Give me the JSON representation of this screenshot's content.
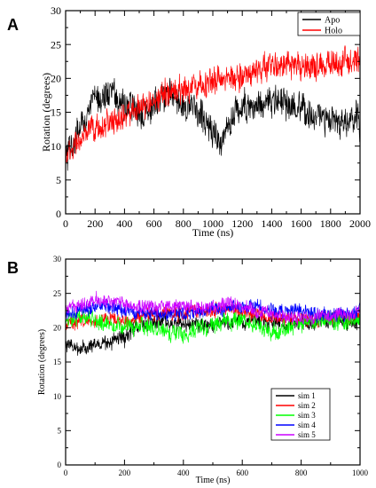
{
  "chart_data": [
    {
      "type": "line",
      "panel_label": "A",
      "title": "",
      "xlabel": "Time (ns)",
      "ylabel": "Rotation (degrees)",
      "xlim": [
        0,
        2000
      ],
      "ylim": [
        0,
        30
      ],
      "xticks": [
        0,
        200,
        400,
        600,
        800,
        1000,
        1200,
        1400,
        1600,
        1800,
        2000
      ],
      "yticks": [
        0,
        5,
        10,
        15,
        20,
        25,
        30
      ],
      "legend_position": "top-right",
      "series": [
        {
          "name": "Apo",
          "color": "#000000",
          "noise": 1.8,
          "points": [
            [
              0,
              8
            ],
            [
              50,
              10
            ],
            [
              100,
              13
            ],
            [
              150,
              15
            ],
            [
              200,
              17
            ],
            [
              250,
              17.5
            ],
            [
              300,
              18
            ],
            [
              350,
              17
            ],
            [
              400,
              16
            ],
            [
              450,
              15.5
            ],
            [
              500,
              15
            ],
            [
              550,
              15.5
            ],
            [
              600,
              16
            ],
            [
              650,
              17
            ],
            [
              700,
              17.5
            ],
            [
              750,
              17
            ],
            [
              800,
              16.5
            ],
            [
              850,
              16
            ],
            [
              900,
              15
            ],
            [
              950,
              14
            ],
            [
              1000,
              12
            ],
            [
              1030,
              11
            ],
            [
              1060,
              10
            ],
            [
              1100,
              12.5
            ],
            [
              1150,
              15
            ],
            [
              1200,
              16
            ],
            [
              1300,
              16
            ],
            [
              1400,
              16.5
            ],
            [
              1450,
              17
            ],
            [
              1500,
              16
            ],
            [
              1600,
              15
            ],
            [
              1700,
              14.5
            ],
            [
              1800,
              13.5
            ],
            [
              1850,
              13
            ],
            [
              1900,
              13.5
            ],
            [
              1950,
              14
            ],
            [
              2000,
              13.5
            ]
          ]
        },
        {
          "name": "Holo",
          "color": "#ff0000",
          "noise": 1.6,
          "points": [
            [
              0,
              8.5
            ],
            [
              50,
              9.5
            ],
            [
              100,
              11
            ],
            [
              200,
              12.5
            ],
            [
              300,
              13.5
            ],
            [
              400,
              14.5
            ],
            [
              500,
              15.5
            ],
            [
              600,
              16.5
            ],
            [
              700,
              18
            ],
            [
              800,
              18.5
            ],
            [
              900,
              19
            ],
            [
              1000,
              19.5
            ],
            [
              1100,
              20
            ],
            [
              1200,
              20.5
            ],
            [
              1300,
              21
            ],
            [
              1400,
              22
            ],
            [
              1500,
              22
            ],
            [
              1600,
              21.5
            ],
            [
              1700,
              22
            ],
            [
              1800,
              22
            ],
            [
              1900,
              22.5
            ],
            [
              2000,
              22.5
            ]
          ]
        }
      ]
    },
    {
      "type": "line",
      "panel_label": "B",
      "title": "",
      "xlabel": "Time (ns)",
      "ylabel": "Rotation (degrees)",
      "xlim": [
        0,
        1000
      ],
      "ylim": [
        0,
        30
      ],
      "xticks": [
        0,
        200,
        400,
        600,
        800,
        1000
      ],
      "yticks": [
        0,
        5,
        10,
        15,
        20,
        25,
        30
      ],
      "legend_position": "bottom-right",
      "series": [
        {
          "name": "sim 1",
          "color": "#000000",
          "noise": 0.9,
          "points": [
            [
              0,
              17.5
            ],
            [
              50,
              17
            ],
            [
              100,
              17.5
            ],
            [
              150,
              18
            ],
            [
              200,
              18.5
            ],
            [
              230,
              20
            ],
            [
              260,
              20.5
            ],
            [
              300,
              21
            ],
            [
              350,
              21
            ],
            [
              400,
              20.5
            ],
            [
              450,
              20.5
            ],
            [
              500,
              20.5
            ],
            [
              550,
              21
            ],
            [
              600,
              21
            ],
            [
              650,
              21
            ],
            [
              700,
              21
            ],
            [
              750,
              20.5
            ],
            [
              800,
              21
            ],
            [
              850,
              21
            ],
            [
              900,
              21
            ],
            [
              950,
              21
            ],
            [
              1000,
              21
            ]
          ]
        },
        {
          "name": "sim 2",
          "color": "#ff0000",
          "noise": 0.8,
          "points": [
            [
              0,
              20.5
            ],
            [
              50,
              21
            ],
            [
              100,
              21
            ],
            [
              150,
              21.5
            ],
            [
              200,
              21
            ],
            [
              250,
              21.5
            ],
            [
              300,
              22
            ],
            [
              350,
              22
            ],
            [
              400,
              22
            ],
            [
              450,
              22.5
            ],
            [
              500,
              22.5
            ],
            [
              550,
              23
            ],
            [
              600,
              22.5
            ],
            [
              650,
              22
            ],
            [
              700,
              21.5
            ],
            [
              750,
              21.5
            ],
            [
              800,
              21.5
            ],
            [
              850,
              21
            ],
            [
              900,
              21.5
            ],
            [
              950,
              21.5
            ],
            [
              1000,
              21.5
            ]
          ]
        },
        {
          "name": "sim 3",
          "color": "#00ff00",
          "noise": 1.0,
          "points": [
            [
              0,
              21
            ],
            [
              50,
              21.5
            ],
            [
              100,
              21
            ],
            [
              150,
              20.5
            ],
            [
              200,
              20
            ],
            [
              250,
              20.5
            ],
            [
              300,
              20
            ],
            [
              350,
              19.5
            ],
            [
              400,
              19
            ],
            [
              450,
              20
            ],
            [
              500,
              20.5
            ],
            [
              550,
              21
            ],
            [
              600,
              21
            ],
            [
              650,
              20
            ],
            [
              700,
              19.5
            ],
            [
              750,
              20
            ],
            [
              800,
              20.5
            ],
            [
              850,
              21
            ],
            [
              900,
              21
            ],
            [
              950,
              21
            ],
            [
              1000,
              21
            ]
          ]
        },
        {
          "name": "sim 4",
          "color": "#0000ff",
          "noise": 0.8,
          "points": [
            [
              0,
              22
            ],
            [
              50,
              22.5
            ],
            [
              100,
              23
            ],
            [
              150,
              23
            ],
            [
              200,
              22.5
            ],
            [
              250,
              22
            ],
            [
              300,
              22
            ],
            [
              350,
              22
            ],
            [
              400,
              22
            ],
            [
              450,
              22.5
            ],
            [
              500,
              22.5
            ],
            [
              550,
              23
            ],
            [
              600,
              23
            ],
            [
              650,
              23
            ],
            [
              700,
              22.5
            ],
            [
              750,
              22.5
            ],
            [
              800,
              22.5
            ],
            [
              850,
              22
            ],
            [
              900,
              22
            ],
            [
              950,
              22
            ],
            [
              1000,
              22.5
            ]
          ]
        },
        {
          "name": "sim 5",
          "color": "#cc00ff",
          "noise": 0.8,
          "points": [
            [
              0,
              23
            ],
            [
              50,
              23.5
            ],
            [
              100,
              24
            ],
            [
              150,
              24
            ],
            [
              200,
              23.5
            ],
            [
              250,
              23
            ],
            [
              300,
              23
            ],
            [
              350,
              23
            ],
            [
              400,
              23
            ],
            [
              450,
              23
            ],
            [
              500,
              23
            ],
            [
              550,
              23.5
            ],
            [
              600,
              23
            ],
            [
              650,
              22.5
            ],
            [
              700,
              22
            ],
            [
              750,
              21.5
            ],
            [
              800,
              21.5
            ],
            [
              850,
              21.5
            ],
            [
              900,
              21.5
            ],
            [
              950,
              22
            ],
            [
              1000,
              22
            ]
          ]
        }
      ]
    }
  ]
}
